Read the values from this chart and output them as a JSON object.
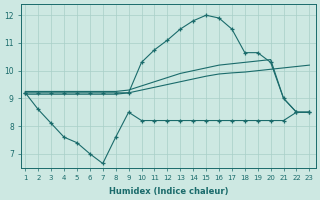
{
  "xlabel": "Humidex (Indice chaleur)",
  "bg_color": "#cde8e2",
  "grid_color": "#a8cfc8",
  "line_color": "#1a6b6b",
  "x_values": [
    1,
    2,
    3,
    4,
    5,
    6,
    7,
    8,
    9,
    10,
    11,
    12,
    13,
    14,
    15,
    16,
    17,
    18,
    19,
    20,
    21,
    22,
    23
  ],
  "series": [
    {
      "y": [
        9.2,
        8.6,
        8.1,
        7.6,
        7.4,
        7.0,
        6.65,
        7.6,
        8.5,
        8.2,
        8.2,
        8.2,
        8.2,
        8.2,
        8.2,
        8.2,
        8.2,
        8.2,
        8.2,
        8.2,
        8.2,
        8.5,
        8.5
      ],
      "marker": true
    },
    {
      "y": [
        9.15,
        9.15,
        9.15,
        9.15,
        9.15,
        9.15,
        9.15,
        9.15,
        9.2,
        9.3,
        9.4,
        9.5,
        9.6,
        9.7,
        9.8,
        9.88,
        9.92,
        9.95,
        10.0,
        10.05,
        10.1,
        10.15,
        10.2
      ],
      "marker": false
    },
    {
      "y": [
        9.25,
        9.25,
        9.25,
        9.25,
        9.25,
        9.25,
        9.25,
        9.25,
        9.3,
        9.45,
        9.6,
        9.75,
        9.9,
        10.0,
        10.1,
        10.2,
        10.25,
        10.3,
        10.35,
        10.4,
        9.0,
        8.5,
        8.5
      ],
      "marker": false
    },
    {
      "y": [
        9.2,
        9.2,
        9.2,
        9.2,
        9.2,
        9.2,
        9.2,
        9.2,
        9.2,
        10.3,
        10.75,
        11.1,
        11.5,
        11.8,
        12.0,
        11.9,
        11.5,
        10.65,
        10.65,
        10.3,
        9.0,
        8.5,
        8.5
      ],
      "marker": true
    }
  ],
  "ylim": [
    6.5,
    12.4
  ],
  "xlim": [
    0.7,
    23.5
  ],
  "yticks": [
    7,
    8,
    9,
    10,
    11,
    12
  ]
}
